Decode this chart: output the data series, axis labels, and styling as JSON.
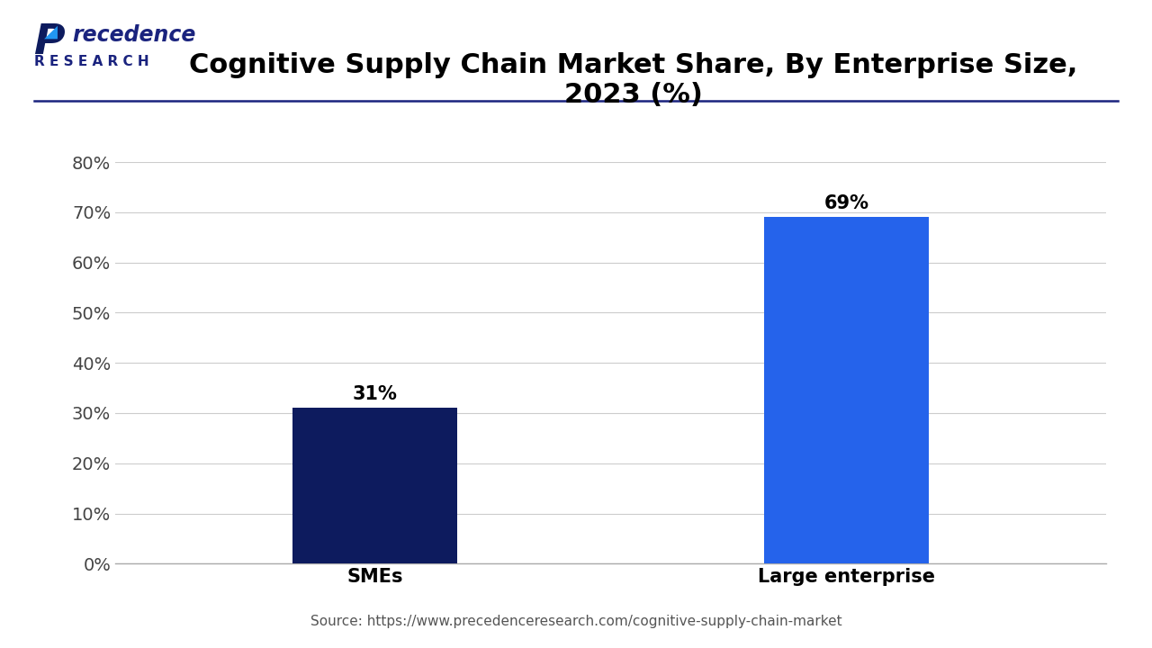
{
  "title": "Cognitive Supply Chain Market Share, By Enterprise Size,\n2023 (%)",
  "categories": [
    "SMEs",
    "Large enterprise"
  ],
  "values": [
    31,
    69
  ],
  "bar_colors": [
    "#0d1b5e",
    "#2563eb"
  ],
  "bar_labels": [
    "31%",
    "69%"
  ],
  "ylim": [
    0,
    80
  ],
  "yticks": [
    0,
    10,
    20,
    30,
    40,
    50,
    60,
    70,
    80
  ],
  "ytick_labels": [
    "0%",
    "10%",
    "20%",
    "30%",
    "40%",
    "50%",
    "60%",
    "70%",
    "80%"
  ],
  "title_fontsize": 22,
  "label_fontsize": 15,
  "tick_fontsize": 14,
  "source_text": "Source: https://www.precedenceresearch.com/cognitive-supply-chain-market",
  "background_color": "#ffffff",
  "grid_color": "#cccccc",
  "logo_line1": "Precedence",
  "logo_line2": "R E S E A R C H",
  "logo_color": "#1a237e",
  "bar_width": 0.35,
  "separator_color": "#1a237e"
}
